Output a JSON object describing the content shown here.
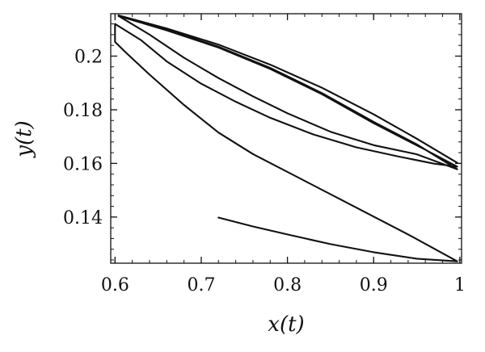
{
  "chart_data": {
    "type": "line",
    "title": "",
    "xlabel": "x(t)",
    "ylabel": "y(t)",
    "xlim": [
      0.595,
      1.002
    ],
    "ylim": [
      0.1228,
      0.2158
    ],
    "x_ticks": [
      0.6,
      0.7,
      0.8,
      0.9,
      1.0
    ],
    "x_tick_labels": [
      "0.6",
      "0.7",
      "0.8",
      "0.9",
      "1"
    ],
    "y_ticks": [
      0.14,
      0.16,
      0.18,
      0.2
    ],
    "y_tick_labels": [
      "0.14",
      "0.16",
      "0.18",
      "0.2"
    ],
    "grid": false,
    "legend": "none",
    "series": [
      {
        "points": [
          [
            0.72,
            0.1398
          ],
          [
            0.76,
            0.1365
          ],
          [
            0.8,
            0.1335
          ],
          [
            0.85,
            0.1299
          ],
          [
            0.9,
            0.1269
          ],
          [
            0.95,
            0.1245
          ],
          [
            0.997,
            0.1235
          ],
          [
            0.94,
            0.1335
          ],
          [
            0.88,
            0.1435
          ],
          [
            0.82,
            0.1535
          ],
          [
            0.76,
            0.1635
          ],
          [
            0.72,
            0.1715
          ],
          [
            0.68,
            0.1818
          ],
          [
            0.64,
            0.1931
          ],
          [
            0.612,
            0.2015
          ],
          [
            0.6,
            0.2053
          ],
          [
            0.6,
            0.212
          ],
          [
            0.63,
            0.206
          ],
          [
            0.66,
            0.198
          ],
          [
            0.7,
            0.1897
          ],
          [
            0.74,
            0.183
          ],
          [
            0.78,
            0.177
          ],
          [
            0.83,
            0.1708
          ],
          [
            0.88,
            0.166
          ],
          [
            0.93,
            0.1625
          ],
          [
            0.97,
            0.1599
          ],
          [
            0.997,
            0.1588
          ],
          [
            0.96,
            0.1651
          ],
          [
            0.9,
            0.175
          ],
          [
            0.84,
            0.1858
          ],
          [
            0.78,
            0.1952
          ],
          [
            0.72,
            0.2032
          ],
          [
            0.66,
            0.2096
          ],
          [
            0.604,
            0.215
          ],
          [
            0.64,
            0.208
          ],
          [
            0.68,
            0.1994
          ],
          [
            0.72,
            0.1918
          ],
          [
            0.76,
            0.185
          ],
          [
            0.8,
            0.1787
          ],
          [
            0.85,
            0.1718
          ],
          [
            0.9,
            0.1668
          ],
          [
            0.95,
            0.1634
          ],
          [
            0.997,
            0.1578
          ],
          [
            0.95,
            0.1671
          ],
          [
            0.9,
            0.1755
          ],
          [
            0.84,
            0.1862
          ],
          [
            0.78,
            0.1956
          ],
          [
            0.72,
            0.2035
          ],
          [
            0.66,
            0.2099
          ],
          [
            0.604,
            0.2152
          ],
          [
            0.66,
            0.2103
          ],
          [
            0.72,
            0.2043
          ],
          [
            0.78,
            0.1968
          ],
          [
            0.84,
            0.1882
          ],
          [
            0.9,
            0.1783
          ],
          [
            0.95,
            0.1692
          ],
          [
            0.997,
            0.1602
          ]
        ]
      }
    ]
  }
}
